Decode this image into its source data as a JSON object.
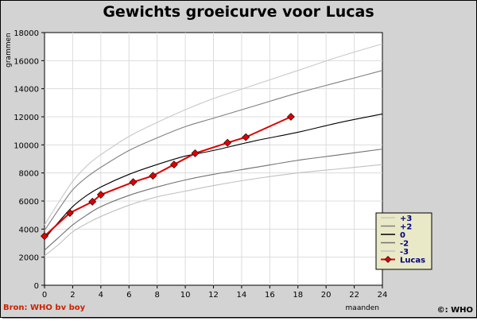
{
  "chart_data": {
    "type": "line",
    "title": "Gewichts groeicurve voor Lucas",
    "xlabel": "maanden",
    "ylabel": "grammen",
    "xlim": [
      0,
      24
    ],
    "ylim": [
      0,
      18000
    ],
    "x_ticks": [
      0,
      2,
      4,
      6,
      8,
      10,
      12,
      14,
      16,
      18,
      20,
      22,
      24
    ],
    "y_ticks": [
      0,
      2000,
      4000,
      6000,
      8000,
      10000,
      12000,
      14000,
      16000,
      18000
    ],
    "grid": true,
    "legend_position": "bottom-right",
    "reference_x": [
      0,
      1,
      2,
      3,
      4,
      6,
      8,
      10,
      12,
      15,
      18,
      21,
      24
    ],
    "series": [
      {
        "name": "+3",
        "color": "#c8c8c8",
        "marker": "none",
        "values": [
          4300,
          5900,
          7400,
          8500,
          9300,
          10600,
          11600,
          12500,
          13300,
          14300,
          15300,
          16300,
          17200
        ]
      },
      {
        "name": "+2",
        "color": "#808080",
        "marker": "none",
        "values": [
          3900,
          5400,
          6800,
          7700,
          8400,
          9600,
          10500,
          11300,
          11900,
          12800,
          13700,
          14500,
          15300
        ]
      },
      {
        "name": "0",
        "color": "#000000",
        "marker": "none",
        "values": [
          3300,
          4500,
          5600,
          6400,
          7000,
          7900,
          8600,
          9200,
          9600,
          10300,
          10900,
          11600,
          12200
        ]
      },
      {
        "name": "-2",
        "color": "#707070",
        "marker": "none",
        "values": [
          2500,
          3400,
          4300,
          5000,
          5600,
          6400,
          7000,
          7500,
          7900,
          8400,
          8900,
          9300,
          9700
        ]
      },
      {
        "name": "-3",
        "color": "#c0c0c0",
        "marker": "none",
        "values": [
          2100,
          2900,
          3800,
          4400,
          4900,
          5700,
          6300,
          6700,
          7100,
          7600,
          8000,
          8300,
          8600
        ]
      },
      {
        "name": "Lucas",
        "color": "#dd0000",
        "marker": "diamond",
        "x": [
          0,
          1.8,
          3.4,
          4.0,
          6.3,
          7.7,
          9.2,
          10.7,
          13.0,
          14.3,
          17.5
        ],
        "values": [
          3500,
          5150,
          5950,
          6450,
          7350,
          7800,
          8600,
          9400,
          10150,
          10550,
          12000
        ]
      }
    ],
    "source_note": "Bron: WHO bv boy",
    "copyright": "©: WHO"
  }
}
